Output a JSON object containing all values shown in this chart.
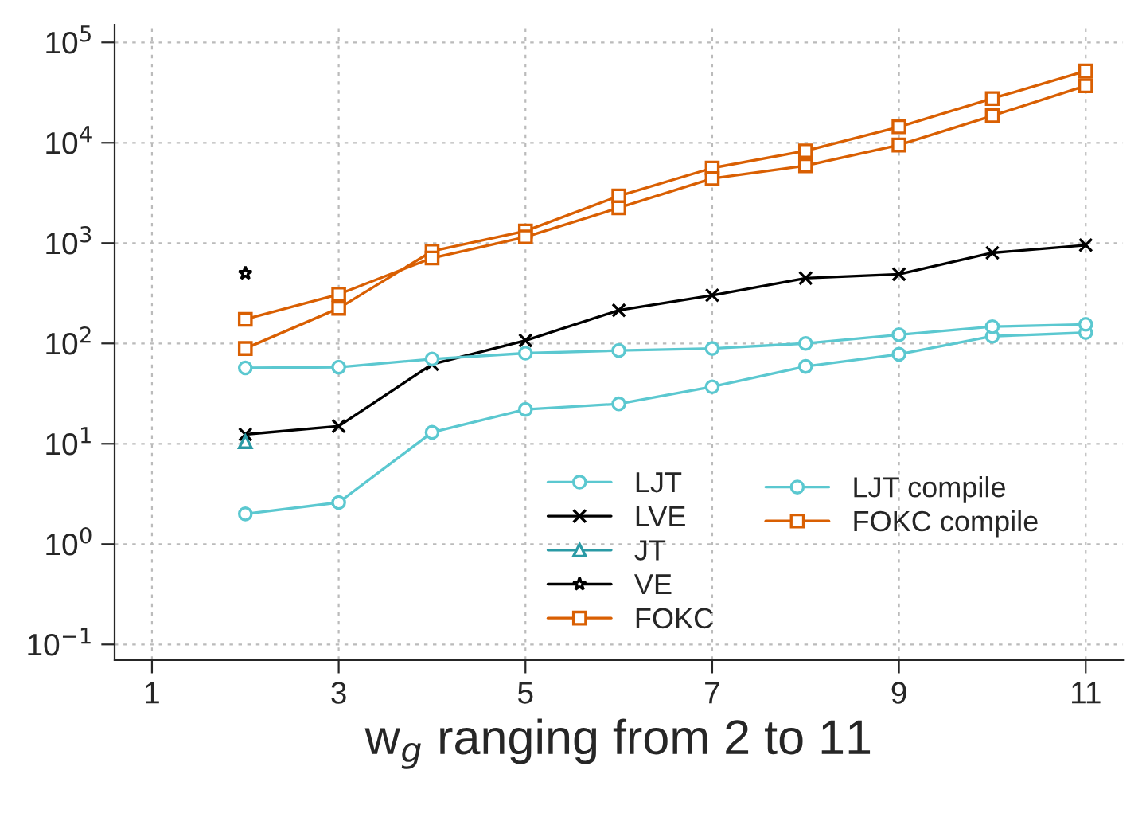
{
  "chart_data": {
    "type": "line",
    "xlabel": "w$_{g}$ ranging from 2 to 11",
    "log": "y",
    "grid": true,
    "legend": "bottom right",
    "xlim": [
      0.6,
      11.4
    ],
    "xticks": [
      1,
      3,
      5,
      7,
      9,
      11
    ],
    "ylim": [
      0.07,
      150000
    ],
    "yticks": [
      {
        "value": 0.1,
        "label": "10$^{−1}$"
      },
      {
        "value": 1,
        "label": "10$^{0}$"
      },
      {
        "value": 10,
        "label": "10$^{1}$"
      },
      {
        "value": 100,
        "label": "10$^{2}$"
      },
      {
        "value": 1000,
        "label": "10$^{3}$"
      },
      {
        "value": 10000,
        "label": "10$^{4}$"
      },
      {
        "value": 100000,
        "label": "10$^{5}$"
      }
    ],
    "x": [
      2,
      3,
      4,
      5,
      6,
      7,
      8,
      9,
      10,
      11
    ],
    "series": [
      {
        "name": "LJT",
        "color": "#5bc8d0",
        "marker": "circle",
        "values": [
          2.0,
          2.6,
          13,
          22,
          25,
          37,
          59,
          78,
          118,
          128
        ]
      },
      {
        "name": "LVE",
        "color": "#000000",
        "marker": "cross",
        "values": [
          12.4,
          15,
          62,
          107,
          214,
          302,
          447,
          490,
          800,
          955
        ]
      },
      {
        "name": "JT",
        "color": "#2a9aa5",
        "marker": "triangle",
        "x": [
          2
        ],
        "values": [
          10.5
        ]
      },
      {
        "name": "VE",
        "color": "#000000",
        "marker": "star",
        "x": [
          2
        ],
        "values": [
          500
        ]
      },
      {
        "name": "FOKC",
        "color": "#d95f02",
        "marker": "square",
        "values": [
          89,
          224,
          830,
          1320,
          2950,
          5600,
          8300,
          14400,
          27600,
          52000
        ]
      },
      {
        "name": "LJT compile",
        "color": "#5bc8d0",
        "marker": "circle",
        "values": [
          57,
          58,
          70,
          80,
          85,
          89,
          100,
          122,
          147,
          155
        ]
      },
      {
        "name": "FOKC compile",
        "color": "#d95f02",
        "marker": "square",
        "values": [
          174,
          309,
          710,
          1150,
          2250,
          4400,
          5900,
          9500,
          18600,
          37000
        ]
      }
    ]
  }
}
